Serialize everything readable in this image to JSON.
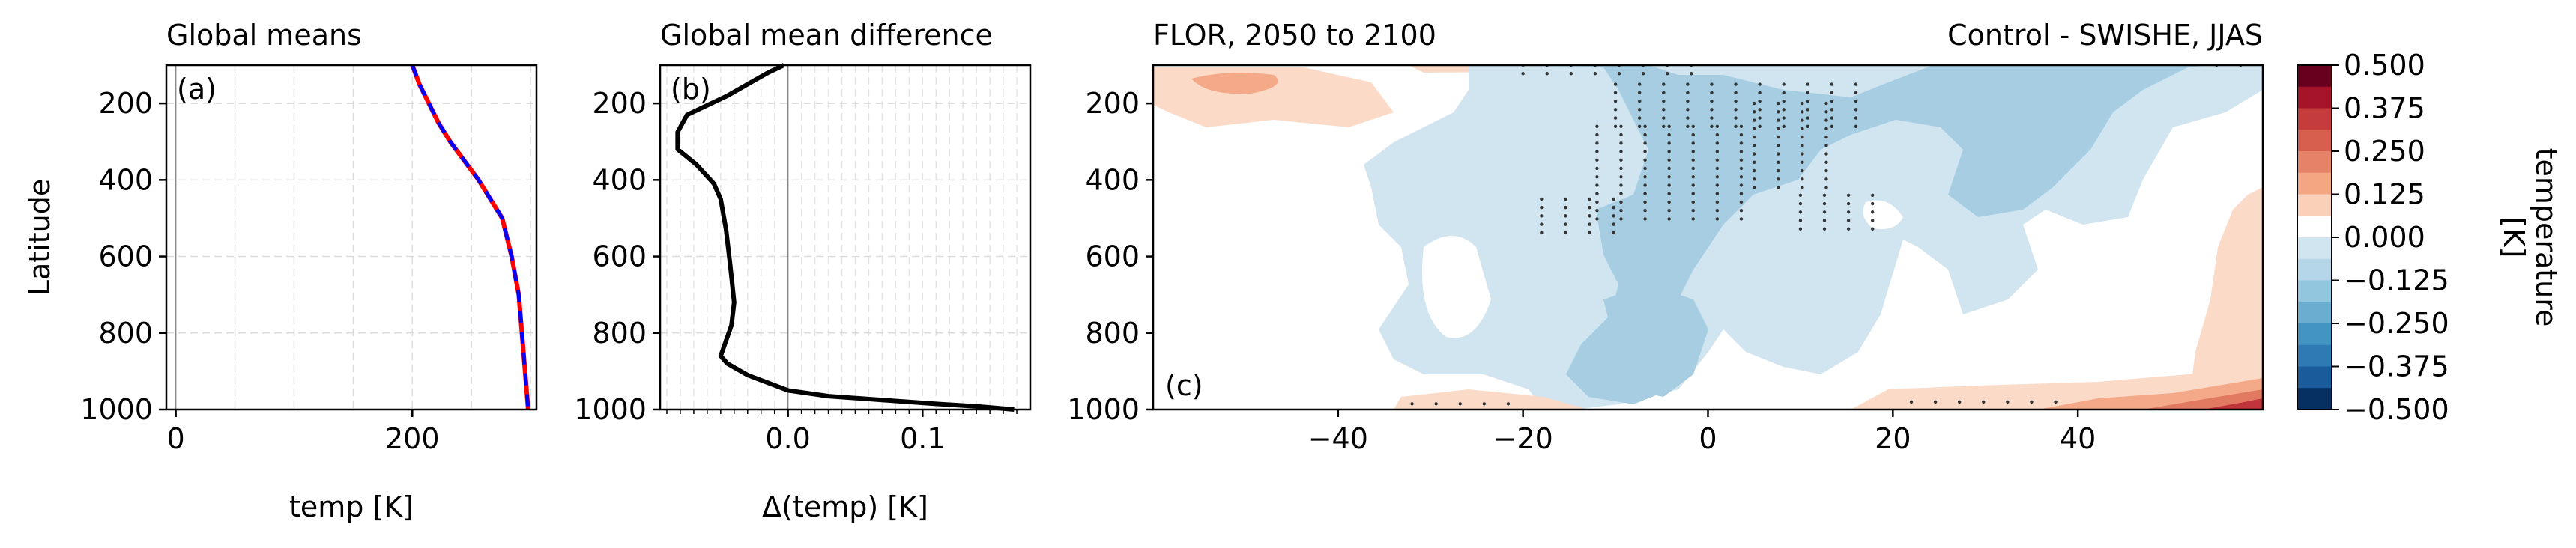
{
  "chart_data": [
    {
      "panel": "(a)",
      "type": "line",
      "title": "Global means",
      "xlabel": "temp [K]",
      "ylabel": "Latitude",
      "xlim": [
        -8,
        305
      ],
      "ylim": [
        1000,
        100
      ],
      "xticks": [
        0,
        200
      ],
      "yticks": [
        200,
        400,
        600,
        800,
        1000
      ],
      "grid": true,
      "series": [
        {
          "color": "#ff0000",
          "style": "solid",
          "x": [
            200,
            206,
            214,
            222,
            232,
            244,
            256,
            266,
            276,
            284,
            290,
            294,
            298
          ],
          "y": [
            100,
            150,
            200,
            250,
            300,
            350,
            400,
            450,
            500,
            600,
            700,
            850,
            1000
          ]
        },
        {
          "color": "#0000ff",
          "style": "dashed",
          "x": [
            200,
            206,
            214,
            222,
            232,
            244,
            256,
            266,
            276,
            284,
            290,
            294,
            298
          ],
          "y": [
            100,
            150,
            200,
            250,
            300,
            350,
            400,
            450,
            500,
            600,
            700,
            850,
            1000
          ]
        }
      ]
    },
    {
      "panel": "(b)",
      "type": "line",
      "title": "Global mean difference",
      "xlabel": "Δ(temp) [K]",
      "xlim": [
        -0.095,
        0.18
      ],
      "ylim": [
        1000,
        100
      ],
      "xticks": [
        "0.0",
        "0.1"
      ],
      "yticks": [
        200,
        400,
        600,
        800,
        1000
      ],
      "grid": true,
      "series": [
        {
          "color": "#000000",
          "style": "solid",
          "x": [
            -0.003,
            -0.015,
            -0.045,
            -0.075,
            -0.082,
            -0.082,
            -0.068,
            -0.055,
            -0.05,
            -0.046,
            -0.043,
            -0.04,
            -0.042,
            -0.05,
            -0.045,
            -0.03,
            -0.015,
            0.0,
            0.03,
            0.07,
            0.11,
            0.145,
            0.168
          ],
          "y": [
            100,
            120,
            180,
            230,
            275,
            320,
            360,
            410,
            450,
            530,
            620,
            720,
            780,
            860,
            880,
            910,
            930,
            950,
            965,
            975,
            985,
            993,
            1000
          ]
        }
      ]
    },
    {
      "panel": "(c)",
      "type": "heatmap",
      "title": "FLOR, 2050 to 2100",
      "subtitle": "Control - SWISHE, JJAS",
      "xlim": [
        -60,
        60
      ],
      "ylim": [
        1000,
        100
      ],
      "xticks": [
        -40,
        -20,
        0,
        20,
        40
      ],
      "yticks": [
        200,
        400,
        600,
        800,
        1000
      ],
      "colorbar": {
        "label": "temperature [K]",
        "ticks": [
          "0.500",
          "0.375",
          "0.250",
          "0.125",
          "0.000",
          "−0.125",
          "−0.250",
          "−0.375",
          "−0.500"
        ],
        "range": [
          -0.5,
          0.5
        ],
        "levels": 16,
        "colormap": "RdBu_r"
      },
      "regions": [
        {
          "sign": "warm",
          "level": 1,
          "desc": "upper-left warm blob"
        },
        {
          "sign": "warm",
          "level": 2,
          "desc": "small warm core near -45,150"
        },
        {
          "sign": "cool",
          "level": 1,
          "desc": "broad mid-column cooling"
        },
        {
          "sign": "cool",
          "level": 2,
          "desc": "core cooling -20..20"
        },
        {
          "sign": "warm",
          "level": 1,
          "desc": "right-edge warm column"
        },
        {
          "sign": "warm",
          "level": 4,
          "desc": "surface warming near 1000 hPa"
        }
      ]
    }
  ]
}
